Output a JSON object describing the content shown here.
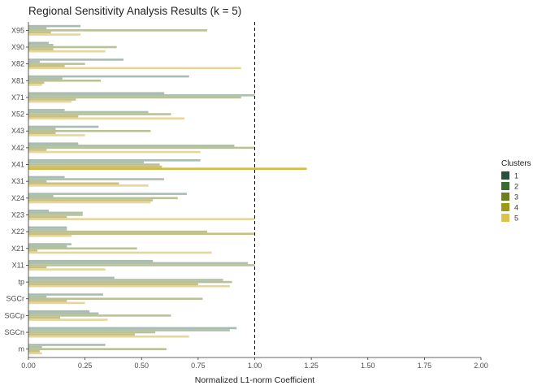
{
  "chart_data": {
    "type": "bar",
    "orientation": "horizontal",
    "title": "Regional Sensitivity Analysis Results (k = 5)",
    "xlabel": "Normalized L1-norm Coefficient",
    "ylabel": "",
    "xlim": [
      0,
      2.0
    ],
    "x_ticks": [
      0.0,
      0.25,
      0.5,
      0.75,
      1.0,
      1.25,
      1.5,
      1.75,
      2.0
    ],
    "x_tick_labels": [
      "0.00",
      "0.25",
      "0.50",
      "0.75",
      "1.00",
      "1.25",
      "1.50",
      "1.75",
      "2.00"
    ],
    "reference_line": 1.0,
    "grid": false,
    "legend_position": "right",
    "legend_title": "Clusters",
    "categories": [
      "X95",
      "X90",
      "X82",
      "X81",
      "X71",
      "X52",
      "X43",
      "X42",
      "X41",
      "X31",
      "X24",
      "X23",
      "X22",
      "X21",
      "X11",
      "tp",
      "SGCr",
      "SGCp",
      "SGCn",
      "m"
    ],
    "series": [
      {
        "name": "1",
        "color": "#a9bcb2",
        "values": [
          0.23,
          0.09,
          0.42,
          0.71,
          0.6,
          0.16,
          0.31,
          0.22,
          0.76,
          0.16,
          0.7,
          0.09,
          0.17,
          0.19,
          0.55,
          0.38,
          0.33,
          0.27,
          0.92,
          0.34
        ]
      },
      {
        "name": "2",
        "color": "#aebfaa",
        "values": [
          0.08,
          0.11,
          0.05,
          0.15,
          1.0,
          0.53,
          0.12,
          0.91,
          0.51,
          0.6,
          0.11,
          0.24,
          0.17,
          0.17,
          0.97,
          0.86,
          0.08,
          0.31,
          0.89,
          0.06
        ]
      },
      {
        "name": "3",
        "color": "#b9c296",
        "values": [
          0.79,
          0.39,
          0.25,
          0.32,
          0.94,
          0.63,
          0.54,
          1.0,
          0.58,
          0.08,
          0.66,
          0.24,
          0.79,
          0.48,
          1.0,
          0.9,
          0.77,
          0.63,
          0.56,
          0.61
        ]
      },
      {
        "name": "4",
        "color": "#c8c080",
        "values": [
          0.1,
          0.11,
          0.16,
          0.07,
          0.21,
          0.22,
          0.12,
          0.08,
          0.59,
          0.4,
          0.55,
          0.17,
          1.0,
          0.04,
          0.08,
          0.75,
          0.17,
          0.14,
          0.47,
          0.05
        ]
      },
      {
        "name": "5",
        "color": "#e6d69a",
        "values": [
          0.23,
          0.34,
          0.94,
          0.06,
          0.19,
          0.69,
          0.25,
          0.76,
          1.23,
          0.53,
          0.54,
          1.0,
          0.19,
          0.81,
          0.34,
          0.89,
          0.25,
          0.35,
          0.71,
          0.06
        ]
      }
    ],
    "legend_swatch_colors": [
      "#2b4f3e",
      "#3a6a2f",
      "#6b8120",
      "#9a9a14",
      "#dcc44a"
    ],
    "highlight": {
      "category": "X41",
      "series": "5",
      "color": "#d8b93c"
    }
  }
}
